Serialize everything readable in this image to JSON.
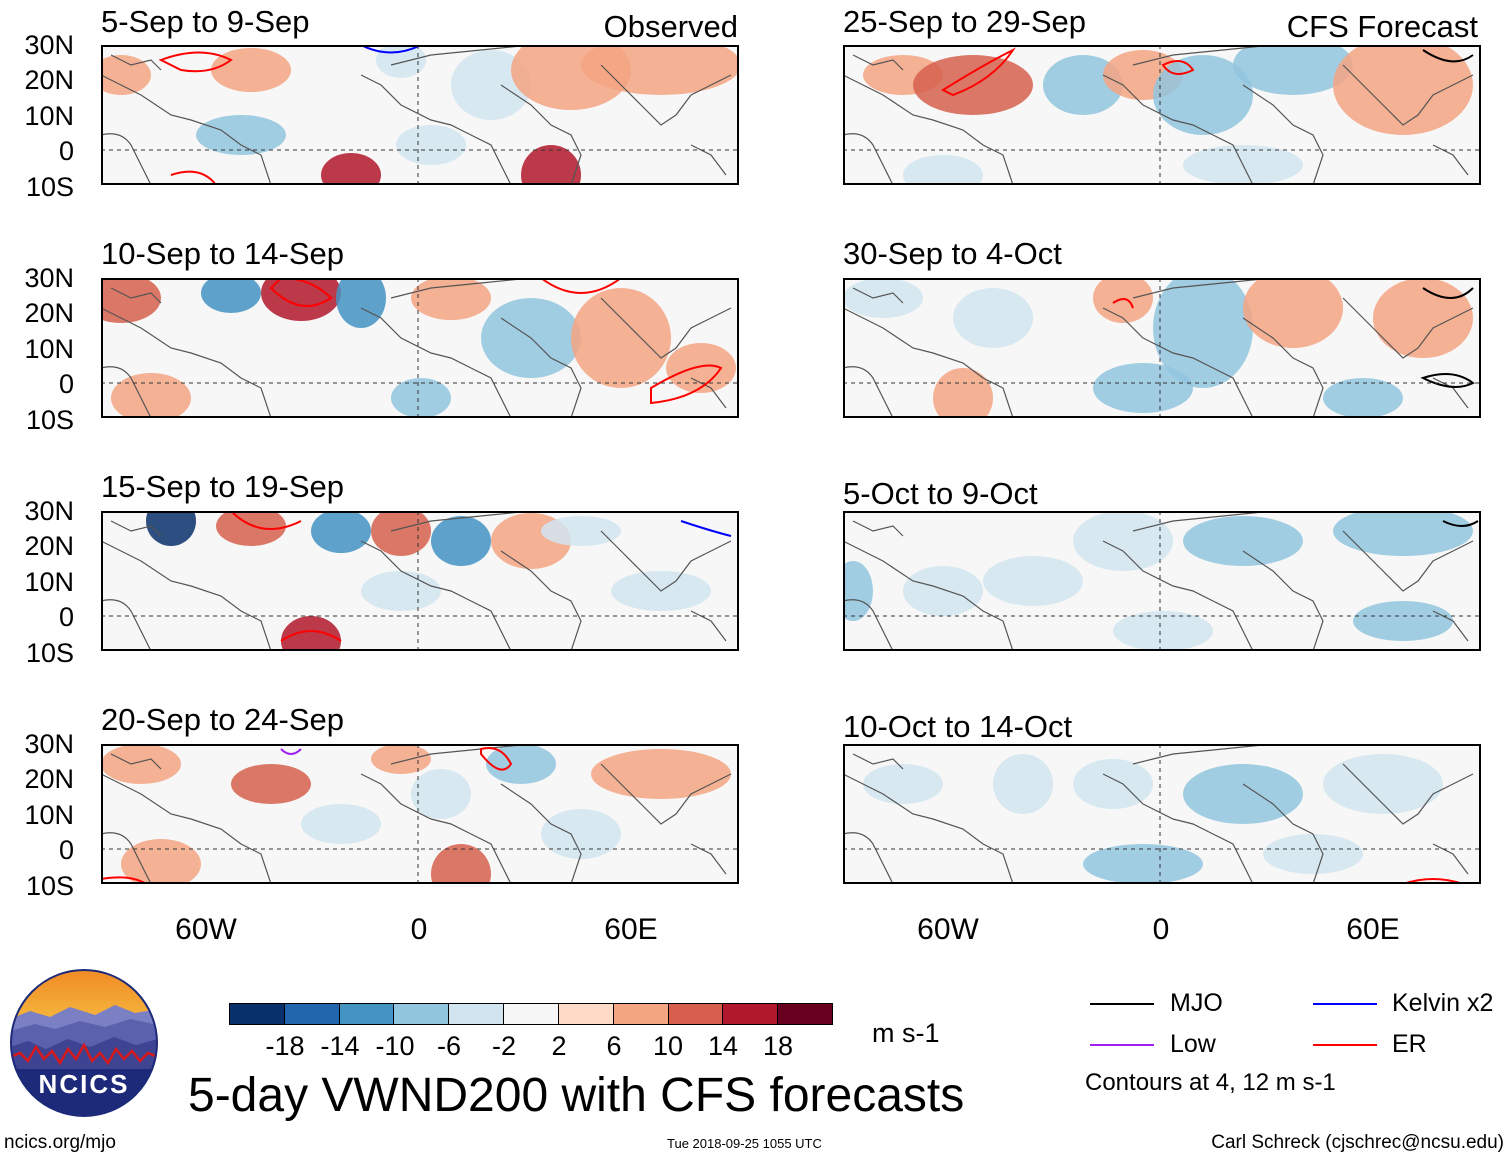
{
  "figure": {
    "title": "5-day VWND200 with CFS forecasts",
    "url": "ncics.org/mjo",
    "timestamp": "Tue 2018-09-25 1055 UTC",
    "author": "Carl Schreck (cjschrec@ncsu.edu)",
    "logo_text": "NCICS",
    "units": "m s-1",
    "contour_note": "Contours at 4, 12 m s-1"
  },
  "columns": {
    "left_label": "Observed",
    "right_label": "CFS Forecast"
  },
  "axes": {
    "lat_labels": [
      "30N",
      "20N",
      "10N",
      "0",
      "10S"
    ],
    "lon_labels": [
      "60W",
      "0",
      "60E"
    ]
  },
  "panels": {
    "observed": [
      {
        "title": "5-Sep to 9-Sep"
      },
      {
        "title": "10-Sep to 14-Sep"
      },
      {
        "title": "15-Sep to 19-Sep"
      },
      {
        "title": "20-Sep to 24-Sep"
      }
    ],
    "forecast": [
      {
        "title": "25-Sep to 29-Sep"
      },
      {
        "title": "30-Sep to 4-Oct"
      },
      {
        "title": "5-Oct to 9-Oct"
      },
      {
        "title": "10-Oct to 14-Oct"
      }
    ]
  },
  "colorbar": {
    "ticks": [
      "-18",
      "-14",
      "-10",
      "-6",
      "-2",
      "2",
      "6",
      "10",
      "14",
      "18"
    ],
    "colors": [
      "#08306b",
      "#2166ac",
      "#4393c3",
      "#92c5de",
      "#d1e5f0",
      "#f7f7f7",
      "#fddbc7",
      "#f4a582",
      "#d6604d",
      "#b2182b",
      "#67001f"
    ]
  },
  "legend": {
    "items": [
      {
        "label": "MJO",
        "color": "#000000"
      },
      {
        "label": "Kelvin x2",
        "color": "#0000ff"
      },
      {
        "label": "Low",
        "color": "#a020f0"
      },
      {
        "label": "ER",
        "color": "#ff0000"
      }
    ]
  }
}
